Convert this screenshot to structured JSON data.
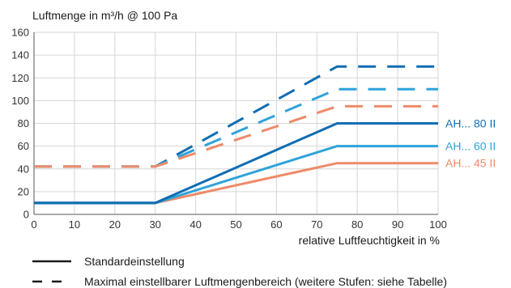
{
  "chart_data": {
    "type": "line",
    "ylabel": "Luftmenge in m³/h @ 100 Pa",
    "xlabel": "relative Luftfeuchtigkeit in %",
    "xlim": [
      0,
      100
    ],
    "ylim": [
      0,
      160
    ],
    "x_ticks": [
      0,
      10,
      20,
      30,
      40,
      50,
      60,
      70,
      80,
      90,
      100
    ],
    "y_ticks": [
      0,
      20,
      40,
      60,
      80,
      100,
      120,
      140,
      160
    ],
    "grid": true,
    "series": [
      {
        "name": "AH... 80 II",
        "style": "solid",
        "color": "#0f6db3",
        "points": [
          [
            0,
            10
          ],
          [
            30,
            10
          ],
          [
            75,
            80
          ],
          [
            100,
            80
          ]
        ]
      },
      {
        "name": "AH... 60 II",
        "style": "solid",
        "color": "#2fa3da",
        "points": [
          [
            0,
            10
          ],
          [
            30,
            10
          ],
          [
            75,
            60
          ],
          [
            100,
            60
          ]
        ]
      },
      {
        "name": "AH... 45 II",
        "style": "solid",
        "color": "#ee8a69",
        "points": [
          [
            0,
            10
          ],
          [
            30,
            10
          ],
          [
            75,
            45
          ],
          [
            100,
            45
          ]
        ]
      },
      {
        "style": "dashed",
        "color": "#0f6db3",
        "points": [
          [
            0,
            42
          ],
          [
            30,
            42
          ],
          [
            75,
            130
          ],
          [
            100,
            130
          ]
        ]
      },
      {
        "style": "dashed",
        "color": "#2fa3da",
        "points": [
          [
            0,
            42
          ],
          [
            30,
            42
          ],
          [
            75,
            110
          ],
          [
            100,
            110
          ]
        ]
      },
      {
        "style": "dashed",
        "color": "#ee8a69",
        "points": [
          [
            0,
            42
          ],
          [
            30,
            42
          ],
          [
            75,
            95
          ],
          [
            100,
            95
          ]
        ]
      }
    ],
    "base_line_color": "#0f6db3",
    "legend": [
      {
        "style": "solid",
        "label": "Standardeinstellung"
      },
      {
        "style": "dashed",
        "label": "Maximal einstellbarer Luftmengenbereich (weitere Stufen: siehe Tabelle)"
      }
    ],
    "legend_position": "bottom"
  }
}
